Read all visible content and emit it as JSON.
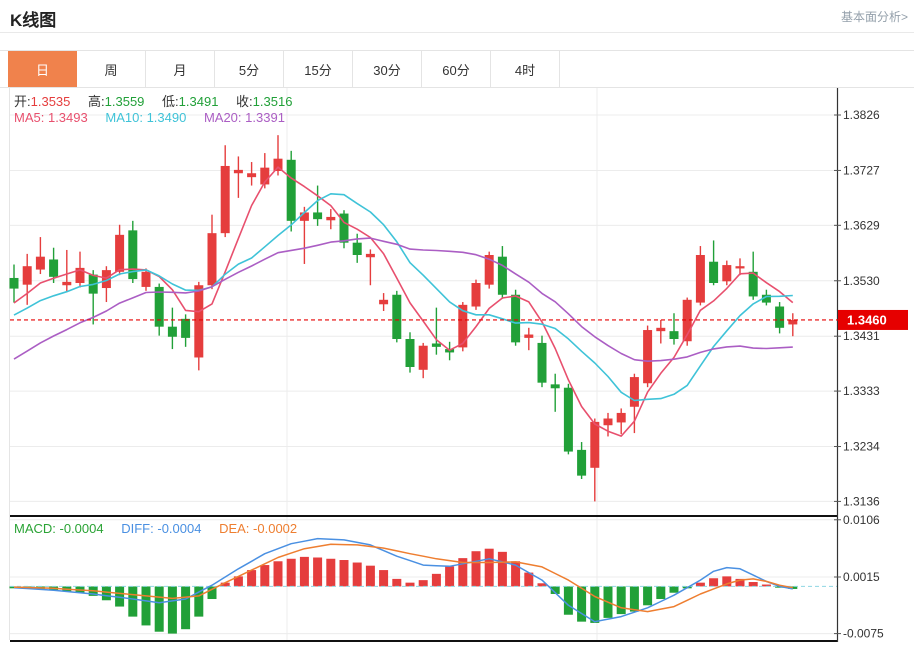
{
  "header": {
    "title": "K线图",
    "link": "基本面分析>"
  },
  "tabs": {
    "items": [
      "日",
      "周",
      "月",
      "5分",
      "15分",
      "30分",
      "60分",
      "4时"
    ],
    "active_index": 0
  },
  "ohlc_bar": {
    "open_label": "开:",
    "open": "1.3535",
    "high_label": "高:",
    "high": "1.3559",
    "low_label": "低:",
    "low": "1.3491",
    "close_label": "收:",
    "close": "1.3516"
  },
  "ma_bar": {
    "ma5_label": "MA5:",
    "ma5": "1.3493",
    "ma10_label": "MA10:",
    "ma10": "1.3490",
    "ma20_label": "MA20:",
    "ma20": "1.3391"
  },
  "macd_bar": {
    "macd_label": "MACD:",
    "macd": "-0.0004",
    "diff_label": "DIFF:",
    "diff": "-0.0004",
    "dea_label": "DEA:",
    "dea": "-0.0002"
  },
  "current_price": {
    "value": "1.3460",
    "price": 1.346
  },
  "colors": {
    "up": "#e53d3d",
    "down": "#21a038",
    "ma5": "#e8506e",
    "ma10": "#3fc3d8",
    "ma20": "#ab5ec4",
    "diff": "#4a90e2",
    "dea": "#ee7e30",
    "grid": "#ececec",
    "plot_border": "#e5e5e5",
    "axis": "#333333",
    "separator": "#111111",
    "tick": "#555555",
    "label": "#333333",
    "price_line": "#e60000",
    "macd_zero": "#8fd6e2",
    "tab_active": "#f0824c"
  },
  "chart_data": {
    "type": "candlestick",
    "title": "K线图 (daily K-line with MA5/MA10/MA20 and MACD)",
    "price_axis_labels": [
      "1.3826",
      "1.3727",
      "1.3629",
      "1.3530",
      "1.3431",
      "1.3333",
      "1.3234",
      "1.3136"
    ],
    "macd_axis_labels": [
      "0.0106",
      "0.0015",
      "-0.0075"
    ],
    "ylim_price": [
      1.3136,
      1.3826
    ],
    "ylim_macd": [
      -0.0075,
      0.0106
    ],
    "legend": [
      "MA5",
      "MA10",
      "MA20",
      "MACD",
      "DIFF",
      "DEA"
    ],
    "x_count": 60,
    "candles_ohlc": [
      [
        1.3535,
        1.3559,
        1.3491,
        1.3516
      ],
      [
        1.3523,
        1.3578,
        1.3487,
        1.3556
      ],
      [
        1.355,
        1.3608,
        1.3542,
        1.3573
      ],
      [
        1.3568,
        1.3589,
        1.3526,
        1.3537
      ],
      [
        1.3522,
        1.3585,
        1.351,
        1.3528
      ],
      [
        1.3526,
        1.3582,
        1.3518,
        1.3553
      ],
      [
        1.3541,
        1.3549,
        1.3452,
        1.3507
      ],
      [
        1.3517,
        1.3556,
        1.3492,
        1.3549
      ],
      [
        1.3546,
        1.363,
        1.354,
        1.3612
      ],
      [
        1.362,
        1.3637,
        1.3526,
        1.3533
      ],
      [
        1.3519,
        1.3552,
        1.3512,
        1.3546
      ],
      [
        1.3519,
        1.3525,
        1.3432,
        1.3448
      ],
      [
        1.3448,
        1.3482,
        1.3408,
        1.343
      ],
      [
        1.3462,
        1.347,
        1.3412,
        1.3428
      ],
      [
        1.3393,
        1.3528,
        1.337,
        1.3522
      ],
      [
        1.3522,
        1.3648,
        1.3515,
        1.3615
      ],
      [
        1.3615,
        1.3772,
        1.3608,
        1.3735
      ],
      [
        1.3722,
        1.3752,
        1.3678,
        1.3728
      ],
      [
        1.3715,
        1.3742,
        1.37,
        1.3722
      ],
      [
        1.3702,
        1.3758,
        1.3695,
        1.3732
      ],
      [
        1.3726,
        1.379,
        1.3718,
        1.3748
      ],
      [
        1.3746,
        1.3762,
        1.3618,
        1.3637
      ],
      [
        1.3637,
        1.3662,
        1.356,
        1.3652
      ],
      [
        1.3652,
        1.37,
        1.3628,
        1.364
      ],
      [
        1.3638,
        1.3658,
        1.3622,
        1.3644
      ],
      [
        1.365,
        1.3656,
        1.3588,
        1.3598
      ],
      [
        1.3598,
        1.3614,
        1.3562,
        1.3576
      ],
      [
        1.3572,
        1.3586,
        1.3522,
        1.3578
      ],
      [
        1.3488,
        1.3508,
        1.3476,
        1.3496
      ],
      [
        1.3505,
        1.3512,
        1.342,
        1.3426
      ],
      [
        1.3426,
        1.3438,
        1.3366,
        1.3376
      ],
      [
        1.3371,
        1.3419,
        1.3356,
        1.3414
      ],
      [
        1.3418,
        1.3482,
        1.3398,
        1.3412
      ],
      [
        1.3408,
        1.3421,
        1.3388,
        1.3402
      ],
      [
        1.3411,
        1.3492,
        1.3404,
        1.3487
      ],
      [
        1.3484,
        1.3532,
        1.3478,
        1.3526
      ],
      [
        1.3523,
        1.3582,
        1.3516,
        1.3576
      ],
      [
        1.3573,
        1.3592,
        1.3498,
        1.3505
      ],
      [
        1.3505,
        1.3514,
        1.3414,
        1.342
      ],
      [
        1.3428,
        1.3446,
        1.3406,
        1.3434
      ],
      [
        1.3419,
        1.3432,
        1.334,
        1.3348
      ],
      [
        1.3345,
        1.3364,
        1.3296,
        1.3338
      ],
      [
        1.3339,
        1.3346,
        1.322,
        1.3225
      ],
      [
        1.3228,
        1.3242,
        1.3176,
        1.3182
      ],
      [
        1.3196,
        1.3284,
        1.3136,
        1.3278
      ],
      [
        1.3272,
        1.3294,
        1.3252,
        1.3284
      ],
      [
        1.3277,
        1.3302,
        1.3256,
        1.3294
      ],
      [
        1.3305,
        1.3364,
        1.3258,
        1.3358
      ],
      [
        1.3347,
        1.345,
        1.334,
        1.3442
      ],
      [
        1.344,
        1.346,
        1.3418,
        1.3446
      ],
      [
        1.344,
        1.3472,
        1.3416,
        1.3426
      ],
      [
        1.3422,
        1.35,
        1.3414,
        1.3496
      ],
      [
        1.3491,
        1.3592,
        1.3486,
        1.3576
      ],
      [
        1.3564,
        1.3602,
        1.3522,
        1.3526
      ],
      [
        1.3529,
        1.3566,
        1.3522,
        1.3558
      ],
      [
        1.3552,
        1.357,
        1.354,
        1.3556
      ],
      [
        1.3546,
        1.3582,
        1.3496,
        1.3502
      ],
      [
        1.3505,
        1.3514,
        1.3486,
        1.3491
      ],
      [
        1.3484,
        1.3492,
        1.3436,
        1.3446
      ],
      [
        1.3452,
        1.3472,
        1.3431,
        1.346
      ]
    ],
    "ma_pre_history_closes": [
      1.327,
      1.328,
      1.329,
      1.33,
      1.331,
      1.3315,
      1.332,
      1.333,
      1.3345,
      1.3355,
      1.343,
      1.344,
      1.345,
      1.3455,
      1.346,
      1.347,
      1.348,
      1.3495,
      1.349
    ],
    "macd_bars": [
      -0.0003,
      -0.0004,
      -0.0004,
      -0.0006,
      -0.0008,
      -0.001,
      -0.0015,
      -0.0022,
      -0.0032,
      -0.0048,
      -0.0062,
      -0.0072,
      -0.0075,
      -0.0068,
      -0.0048,
      -0.002,
      0.0006,
      0.0016,
      0.0026,
      0.0034,
      0.004,
      0.0044,
      0.0047,
      0.0046,
      0.0044,
      0.0042,
      0.0038,
      0.0033,
      0.0026,
      0.0012,
      0.0006,
      0.001,
      0.002,
      0.0032,
      0.0045,
      0.0056,
      0.006,
      0.0055,
      0.004,
      0.0022,
      0.0005,
      -0.0012,
      -0.0045,
      -0.0056,
      -0.0058,
      -0.005,
      -0.0044,
      -0.004,
      -0.003,
      -0.002,
      -0.001,
      -0.0003,
      0.0006,
      0.0013,
      0.0016,
      0.0012,
      0.0007,
      0.0003,
      -0.0002,
      -0.0004
    ],
    "diff_points": [
      [
        0,
        -0.0002
      ],
      [
        3,
        -0.0006
      ],
      [
        6,
        -0.0012
      ],
      [
        9,
        -0.002
      ],
      [
        11,
        -0.0026
      ],
      [
        13,
        -0.002
      ],
      [
        15,
        0.0002
      ],
      [
        17,
        0.0028
      ],
      [
        19,
        0.0052
      ],
      [
        21,
        0.0068
      ],
      [
        23,
        0.0076
      ],
      [
        25,
        0.0074
      ],
      [
        27,
        0.0066
      ],
      [
        29,
        0.0048
      ],
      [
        31,
        0.0034
      ],
      [
        33,
        0.0032
      ],
      [
        35,
        0.004
      ],
      [
        36,
        0.0044
      ],
      [
        38,
        0.0034
      ],
      [
        40,
        0.001
      ],
      [
        42,
        -0.003
      ],
      [
        44,
        -0.0056
      ],
      [
        46,
        -0.0048
      ],
      [
        48,
        -0.0034
      ],
      [
        50,
        -0.0014
      ],
      [
        52,
        0.001
      ],
      [
        53,
        0.0024
      ],
      [
        54,
        0.003
      ],
      [
        55,
        0.0028
      ],
      [
        56,
        0.0018
      ],
      [
        57,
        0.0008
      ],
      [
        58,
        0.0
      ],
      [
        59,
        -0.0004
      ]
    ],
    "dea_points": [
      [
        0,
        -0.0001
      ],
      [
        3,
        -0.0003
      ],
      [
        6,
        -0.0007
      ],
      [
        9,
        -0.0013
      ],
      [
        12,
        -0.0019
      ],
      [
        14,
        -0.0015
      ],
      [
        16,
        0.0006
      ],
      [
        18,
        0.0026
      ],
      [
        20,
        0.0046
      ],
      [
        22,
        0.006
      ],
      [
        24,
        0.0067
      ],
      [
        26,
        0.0066
      ],
      [
        28,
        0.0061
      ],
      [
        30,
        0.0052
      ],
      [
        32,
        0.0044
      ],
      [
        34,
        0.0038
      ],
      [
        36,
        0.0038
      ],
      [
        38,
        0.0039
      ],
      [
        40,
        0.0031
      ],
      [
        42,
        0.001
      ],
      [
        44,
        -0.0016
      ],
      [
        46,
        -0.0034
      ],
      [
        48,
        -0.004
      ],
      [
        50,
        -0.0032
      ],
      [
        52,
        -0.0012
      ],
      [
        54,
        0.0004
      ],
      [
        55,
        0.001
      ],
      [
        56,
        0.0012
      ],
      [
        57,
        0.0008
      ],
      [
        58,
        0.0002
      ],
      [
        59,
        -0.0002
      ]
    ],
    "v_gridlines_x": [
      287,
      597
    ]
  }
}
